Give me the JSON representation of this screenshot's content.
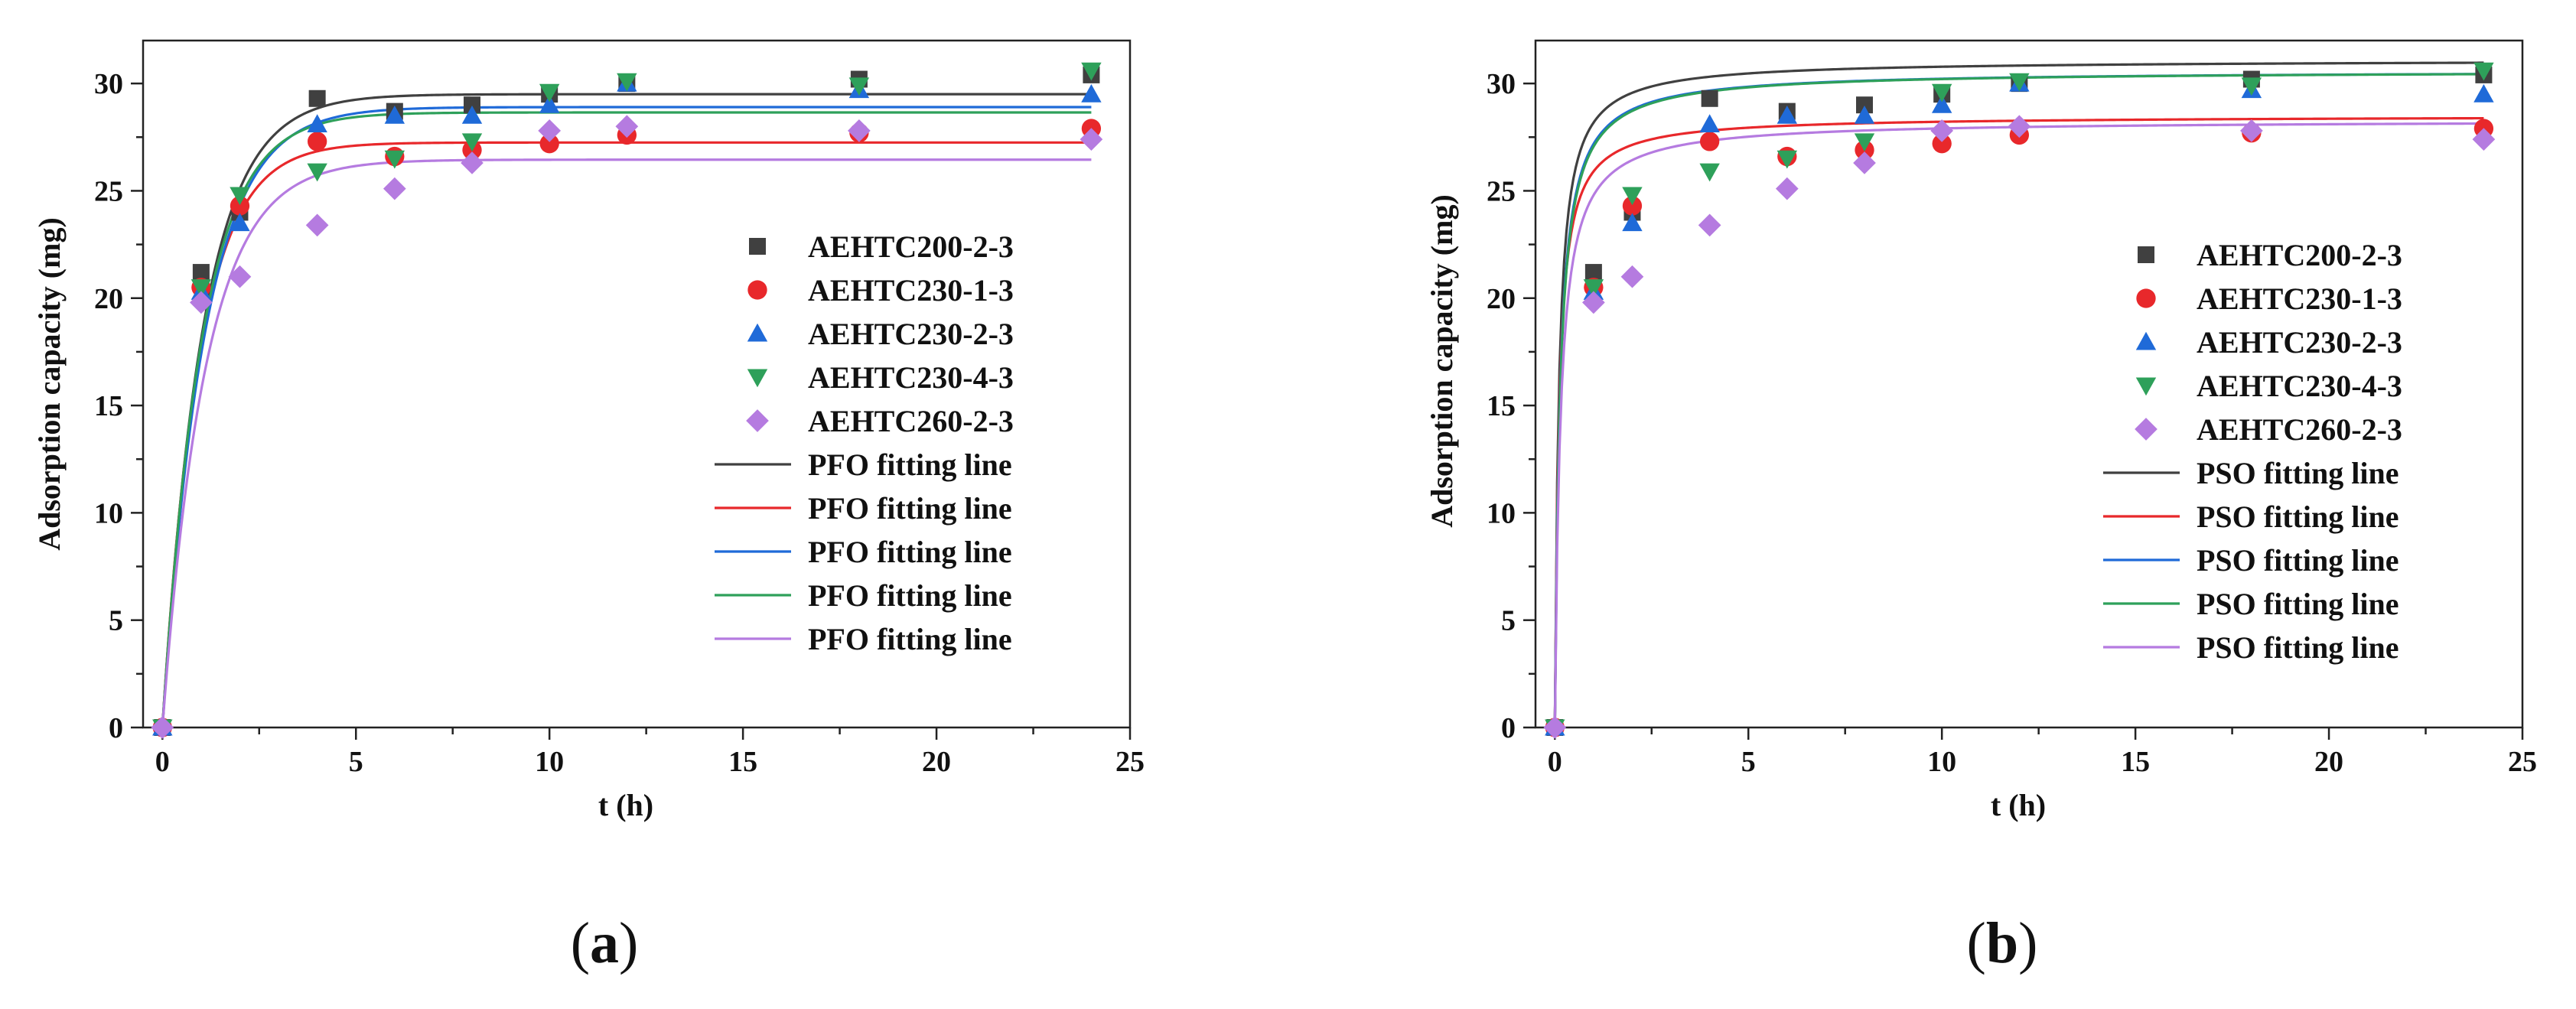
{
  "chart_data": [
    {
      "id": "a",
      "type": "scatter",
      "caption_letter": "a",
      "xlabel": "t (h)",
      "ylabel": "Adsorption capacity (mg)",
      "xlim": [
        -0.5,
        25
      ],
      "ylim": [
        0,
        32
      ],
      "xticks": [
        0,
        5,
        10,
        15,
        20,
        25
      ],
      "yticks": [
        0,
        5,
        10,
        15,
        20,
        25,
        30
      ],
      "legend_position": "center-right",
      "x": [
        0,
        1,
        2,
        4,
        6,
        8,
        10,
        12,
        18,
        24
      ],
      "series": [
        {
          "name": "AEHTC200-2-3",
          "marker": "square",
          "color": "#404040",
          "values": [
            0,
            21.2,
            24.0,
            29.3,
            28.7,
            29.0,
            29.5,
            30.0,
            30.2,
            30.4
          ]
        },
        {
          "name": "AEHTC230-1-3",
          "marker": "circle",
          "color": "#e8282b",
          "values": [
            0,
            20.5,
            24.3,
            27.3,
            26.6,
            26.9,
            27.2,
            27.6,
            27.7,
            27.9
          ]
        },
        {
          "name": "AEHTC230-2-3",
          "marker": "triangle-up",
          "color": "#1f6ad8",
          "values": [
            0,
            20.3,
            23.5,
            28.1,
            28.5,
            28.5,
            29.0,
            30.0,
            29.7,
            29.5
          ]
        },
        {
          "name": "AEHTC230-4-3",
          "marker": "triangle-down",
          "color": "#2ea05a",
          "values": [
            0,
            20.5,
            24.8,
            25.9,
            26.5,
            27.3,
            29.6,
            30.1,
            29.9,
            30.6
          ]
        },
        {
          "name": "AEHTC260-2-3",
          "marker": "diamond",
          "color": "#b57be0",
          "values": [
            0,
            19.8,
            21.0,
            23.4,
            25.1,
            26.3,
            27.8,
            28.0,
            27.8,
            27.4
          ]
        }
      ],
      "fit_model": "PFO",
      "fits": [
        {
          "name": "PFO fitting line",
          "color": "#404040",
          "qe": 29.5,
          "k": 0.95
        },
        {
          "name": "PFO fitting line",
          "color": "#e8282b",
          "qe": 27.25,
          "k": 1.05
        },
        {
          "name": "PFO fitting line",
          "color": "#1f6ad8",
          "qe": 28.9,
          "k": 0.92
        },
        {
          "name": "PFO fitting line",
          "color": "#2ea05a",
          "qe": 28.65,
          "k": 0.98
        },
        {
          "name": "PFO fitting line",
          "color": "#b57be0",
          "qe": 26.45,
          "k": 0.9
        }
      ]
    },
    {
      "id": "b",
      "type": "scatter",
      "caption_letter": "b",
      "xlabel": "t (h)",
      "ylabel": "Adsorption capacity (mg)",
      "xlim": [
        -0.5,
        25
      ],
      "ylim": [
        0,
        32
      ],
      "xticks": [
        0,
        5,
        10,
        15,
        20,
        25
      ],
      "yticks": [
        0,
        5,
        10,
        15,
        20,
        25,
        30
      ],
      "legend_position": "center-right",
      "x": [
        0,
        1,
        2,
        4,
        6,
        8,
        10,
        12,
        18,
        24
      ],
      "series": [
        {
          "name": "AEHTC200-2-3",
          "marker": "square",
          "color": "#404040",
          "values": [
            0,
            21.2,
            24.0,
            29.3,
            28.7,
            29.0,
            29.5,
            30.0,
            30.2,
            30.4
          ]
        },
        {
          "name": "AEHTC230-1-3",
          "marker": "circle",
          "color": "#e8282b",
          "values": [
            0,
            20.5,
            24.3,
            27.3,
            26.6,
            26.9,
            27.2,
            27.6,
            27.7,
            27.9
          ]
        },
        {
          "name": "AEHTC230-2-3",
          "marker": "triangle-up",
          "color": "#1f6ad8",
          "values": [
            0,
            20.3,
            23.5,
            28.1,
            28.5,
            28.5,
            29.0,
            30.0,
            29.7,
            29.5
          ]
        },
        {
          "name": "AEHTC230-4-3",
          "marker": "triangle-down",
          "color": "#2ea05a",
          "values": [
            0,
            20.5,
            24.8,
            25.9,
            26.5,
            27.3,
            29.6,
            30.1,
            29.9,
            30.6
          ]
        },
        {
          "name": "AEHTC260-2-3",
          "marker": "diamond",
          "color": "#b57be0",
          "values": [
            0,
            19.8,
            21.0,
            23.4,
            25.1,
            26.3,
            27.8,
            28.0,
            27.8,
            27.4
          ]
        }
      ],
      "fit_model": "PSO",
      "fits": [
        {
          "name": "PSO fitting line",
          "color": "#404040",
          "qe": 31.1,
          "k": 0.31
        },
        {
          "name": "PSO fitting line",
          "color": "#e8282b",
          "qe": 28.5,
          "k": 0.35
        },
        {
          "name": "PSO fitting line",
          "color": "#1f6ad8",
          "qe": 30.6,
          "k": 0.26
        },
        {
          "name": "PSO fitting line",
          "color": "#2ea05a",
          "qe": 30.6,
          "k": 0.25
        },
        {
          "name": "PSO fitting line",
          "color": "#b57be0",
          "qe": 28.3,
          "k": 0.25
        }
      ]
    }
  ]
}
